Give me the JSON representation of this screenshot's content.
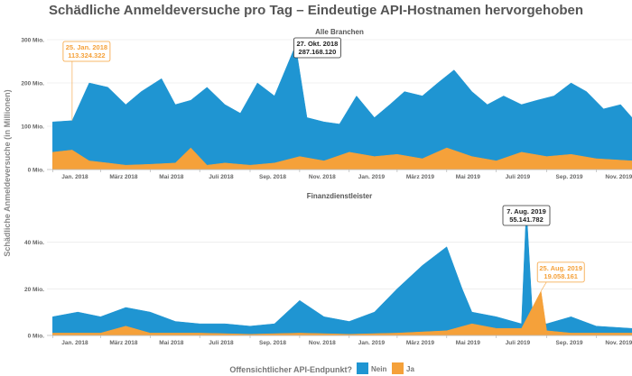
{
  "chart_data": {
    "type": "area",
    "title": "Schädliche Anmeldeversuche pro Tag – Eindeutige API-Hostnamen hervorgehoben",
    "ylabel": "Schädliche Anmeldeversuche (in Millionen)",
    "x_tick_labels": [
      "Jan. 2018",
      "März 2018",
      "Mai 2018",
      "Juli 2018",
      "Sep. 2018",
      "Nov. 2018",
      "Jan. 2019",
      "März 2019",
      "Mai 2019",
      "Juli 2019",
      "Sep. 2019",
      "Nov. 2019"
    ],
    "x_tick_dates": [
      "2018-01-01",
      "2018-03-01",
      "2018-05-01",
      "2018-07-01",
      "2018-09-01",
      "2018-11-01",
      "2019-01-01",
      "2019-03-01",
      "2019-05-01",
      "2019-07-01",
      "2019-09-01",
      "2019-11-01"
    ],
    "x_range": [
      "2017-12-25",
      "2019-12-15"
    ],
    "legend": {
      "title": "Offensichtlicher API-Endpunkt?",
      "placement": "bottom",
      "items": [
        {
          "label": "Nein",
          "color": "#1f95d2"
        },
        {
          "label": "Ja",
          "color": "#f5a13a"
        }
      ]
    },
    "panels": [
      {
        "title": "Alle Branchen",
        "ylim": [
          0,
          300
        ],
        "y_ticks": [
          0,
          100,
          200,
          300
        ],
        "y_tick_labels": [
          "0 Mio.",
          "100 Mio.",
          "200 Mio.",
          "300 Mio."
        ],
        "series": [
          {
            "name": "Nein",
            "color": "#1f95d2",
            "x": [
              "2018-01-01",
              "2018-01-25",
              "2018-02-15",
              "2018-03-10",
              "2018-04-01",
              "2018-04-20",
              "2018-05-15",
              "2018-06-01",
              "2018-06-20",
              "2018-07-10",
              "2018-08-01",
              "2018-08-20",
              "2018-09-10",
              "2018-10-01",
              "2018-10-27",
              "2018-11-10",
              "2018-12-01",
              "2018-12-20",
              "2019-01-10",
              "2019-02-01",
              "2019-02-20",
              "2019-03-10",
              "2019-04-01",
              "2019-04-20",
              "2019-05-10",
              "2019-06-01",
              "2019-06-20",
              "2019-07-10",
              "2019-08-01",
              "2019-08-20",
              "2019-09-10",
              "2019-10-01",
              "2019-10-20",
              "2019-11-10",
              "2019-12-01",
              "2019-12-15"
            ],
            "y": [
              110,
              113,
              200,
              190,
              150,
              180,
              210,
              150,
              160,
              190,
              150,
              130,
              200,
              170,
              287,
              120,
              110,
              105,
              170,
              120,
              150,
              180,
              170,
              200,
              230,
              180,
              150,
              170,
              150,
              160,
              170,
              200,
              180,
              140,
              150,
              120
            ]
          },
          {
            "name": "Ja",
            "color": "#f5a13a",
            "x": [
              "2018-01-01",
              "2018-01-25",
              "2018-02-15",
              "2018-03-10",
              "2018-04-01",
              "2018-05-01",
              "2018-06-01",
              "2018-06-20",
              "2018-07-10",
              "2018-08-01",
              "2018-09-01",
              "2018-10-01",
              "2018-11-01",
              "2018-12-01",
              "2019-01-01",
              "2019-02-01",
              "2019-03-01",
              "2019-04-01",
              "2019-05-01",
              "2019-06-01",
              "2019-07-01",
              "2019-08-01",
              "2019-09-01",
              "2019-10-01",
              "2019-11-01",
              "2019-12-15"
            ],
            "y": [
              40,
              45,
              20,
              15,
              10,
              12,
              15,
              50,
              10,
              15,
              10,
              15,
              30,
              20,
              40,
              30,
              35,
              25,
              50,
              30,
              20,
              40,
              30,
              35,
              25,
              20
            ]
          }
        ],
        "annotations": [
          {
            "date": "2018-01-25",
            "value": 113,
            "label": "25. Jan. 2018",
            "value_label": "113.324.322",
            "style": "orange"
          },
          {
            "date": "2018-10-27",
            "value": 287,
            "label": "27. Okt. 2018",
            "value_label": "287.168.120",
            "style": "dark"
          }
        ]
      },
      {
        "title": "Finanzdienstleister",
        "ylim": [
          0,
          58
        ],
        "y_ticks": [
          0,
          20,
          40
        ],
        "y_tick_labels": [
          "0 Mio.",
          "20 Mio.",
          "40 Mio."
        ],
        "series": [
          {
            "name": "Nein",
            "color": "#1f95d2",
            "x": [
              "2018-01-01",
              "2018-02-01",
              "2018-03-01",
              "2018-04-01",
              "2018-05-01",
              "2018-06-01",
              "2018-07-01",
              "2018-08-01",
              "2018-09-01",
              "2018-10-01",
              "2018-11-01",
              "2018-12-01",
              "2019-01-01",
              "2019-02-01",
              "2019-03-01",
              "2019-04-01",
              "2019-05-01",
              "2019-05-20",
              "2019-06-01",
              "2019-07-01",
              "2019-08-01",
              "2019-08-07",
              "2019-08-15",
              "2019-09-01",
              "2019-10-01",
              "2019-11-01",
              "2019-12-15"
            ],
            "y": [
              8,
              10,
              8,
              12,
              10,
              6,
              5,
              5,
              4,
              5,
              15,
              8,
              6,
              10,
              20,
              30,
              38,
              20,
              10,
              8,
              5,
              55,
              6,
              5,
              8,
              4,
              3
            ]
          },
          {
            "name": "Ja",
            "color": "#f5a13a",
            "x": [
              "2018-01-01",
              "2018-03-01",
              "2018-04-01",
              "2018-05-01",
              "2018-07-01",
              "2018-09-01",
              "2018-11-01",
              "2019-01-01",
              "2019-03-01",
              "2019-05-01",
              "2019-06-01",
              "2019-07-01",
              "2019-08-01",
              "2019-08-25",
              "2019-09-01",
              "2019-10-01",
              "2019-12-15"
            ],
            "y": [
              1,
              1,
              4,
              1,
              1,
              0.5,
              1,
              0.5,
              1,
              2,
              5,
              3,
              3,
              19,
              2,
              1,
              1
            ]
          }
        ],
        "annotations": [
          {
            "date": "2019-08-07",
            "value": 55,
            "label": "7. Aug. 2019",
            "value_label": "55.141.782",
            "style": "dark"
          },
          {
            "date": "2019-08-25",
            "value": 19,
            "label": "25. Aug. 2019",
            "value_label": "19.058.161",
            "style": "orange"
          }
        ]
      }
    ]
  }
}
